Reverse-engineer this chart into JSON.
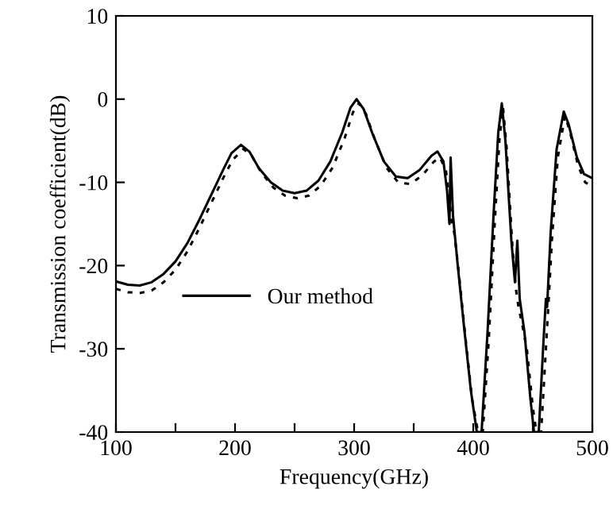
{
  "chart_data": {
    "type": "line",
    "xlabel": "Frequency(GHz)",
    "ylabel": "Transmission coefficient(dB)",
    "xlim": [
      100,
      500
    ],
    "ylim": [
      -40,
      10
    ],
    "xticks": [
      100,
      {
        "value": 150,
        "label": null
      },
      200,
      {
        "value": 250,
        "label": null
      },
      300,
      {
        "value": 350,
        "label": null
      },
      400,
      {
        "value": 450,
        "label": null
      },
      500
    ],
    "yticks": [
      -40,
      -30,
      -20,
      -10,
      0,
      10
    ],
    "grid": false,
    "legend": "bottom left",
    "marker": "none",
    "series": [
      {
        "name": "Our method",
        "color": "#000000",
        "line_style": "solid",
        "x": [
          100,
          110,
          120,
          130,
          140,
          150,
          160,
          170,
          180,
          190,
          197,
          205,
          212,
          220,
          230,
          240,
          250,
          260,
          270,
          280,
          290,
          297,
          302,
          308,
          315,
          325,
          335,
          345,
          355,
          365,
          370,
          375,
          378,
          380,
          381,
          383,
          387,
          392,
          398,
          403,
          407,
          412,
          417,
          421,
          424,
          427,
          432,
          435,
          437,
          439,
          443,
          448,
          451,
          455,
          459,
          461,
          462,
          465,
          470,
          476,
          480,
          487,
          493,
          500
        ],
        "values": [
          -21.9,
          -22.3,
          -22.4,
          -22,
          -21,
          -19.5,
          -17.3,
          -14.5,
          -11.5,
          -8.5,
          -6.5,
          -5.5,
          -6.3,
          -8.3,
          -10,
          -11,
          -11.3,
          -11,
          -9.8,
          -7.5,
          -4,
          -1,
          0,
          -1.2,
          -4,
          -7.5,
          -9.3,
          -9.5,
          -8.5,
          -6.8,
          -6.3,
          -7.5,
          -11,
          -15,
          -7,
          -14,
          -20,
          -27,
          -35,
          -40,
          -40,
          -28,
          -14,
          -4,
          -0.5,
          -5,
          -17,
          -22,
          -17,
          -24,
          -28,
          -36,
          -40,
          -40,
          -29,
          -24,
          -25,
          -16,
          -6,
          -1.5,
          -3,
          -7,
          -9,
          -9.5
        ]
      },
      {
        "color": "#000000",
        "line_style": "dotted",
        "x": [
          100,
          110,
          120,
          130,
          140,
          150,
          160,
          170,
          180,
          190,
          198,
          207,
          214,
          222,
          232,
          242,
          252,
          262,
          272,
          282,
          292,
          299,
          304,
          310,
          317,
          327,
          337,
          347,
          357,
          367,
          372,
          377,
          380,
          382,
          384,
          388,
          393,
          399,
          404,
          408,
          413,
          418,
          422,
          425,
          428,
          433,
          436,
          438,
          441,
          445,
          450,
          453,
          457,
          461,
          463,
          466,
          471,
          477,
          481,
          488,
          494,
          500
        ],
        "values": [
          -22.8,
          -23.2,
          -23.3,
          -23,
          -22,
          -20.5,
          -18.3,
          -15.5,
          -12.5,
          -9.5,
          -7.3,
          -6,
          -6.8,
          -8.8,
          -10.6,
          -11.6,
          -11.9,
          -11.6,
          -10.4,
          -8.2,
          -4.7,
          -1.6,
          -0.5,
          -1.8,
          -4.7,
          -8.2,
          -10,
          -10.2,
          -9.2,
          -7.5,
          -7,
          -8.5,
          -12,
          -15,
          -16,
          -21,
          -28,
          -36,
          -40,
          -40,
          -29,
          -15,
          -4.8,
          -1,
          -5.8,
          -18,
          -23,
          -25,
          -27,
          -30,
          -37,
          -40,
          -40,
          -30,
          -25,
          -17,
          -7,
          -2,
          -3.8,
          -8,
          -10,
          -10.5
        ]
      }
    ]
  }
}
